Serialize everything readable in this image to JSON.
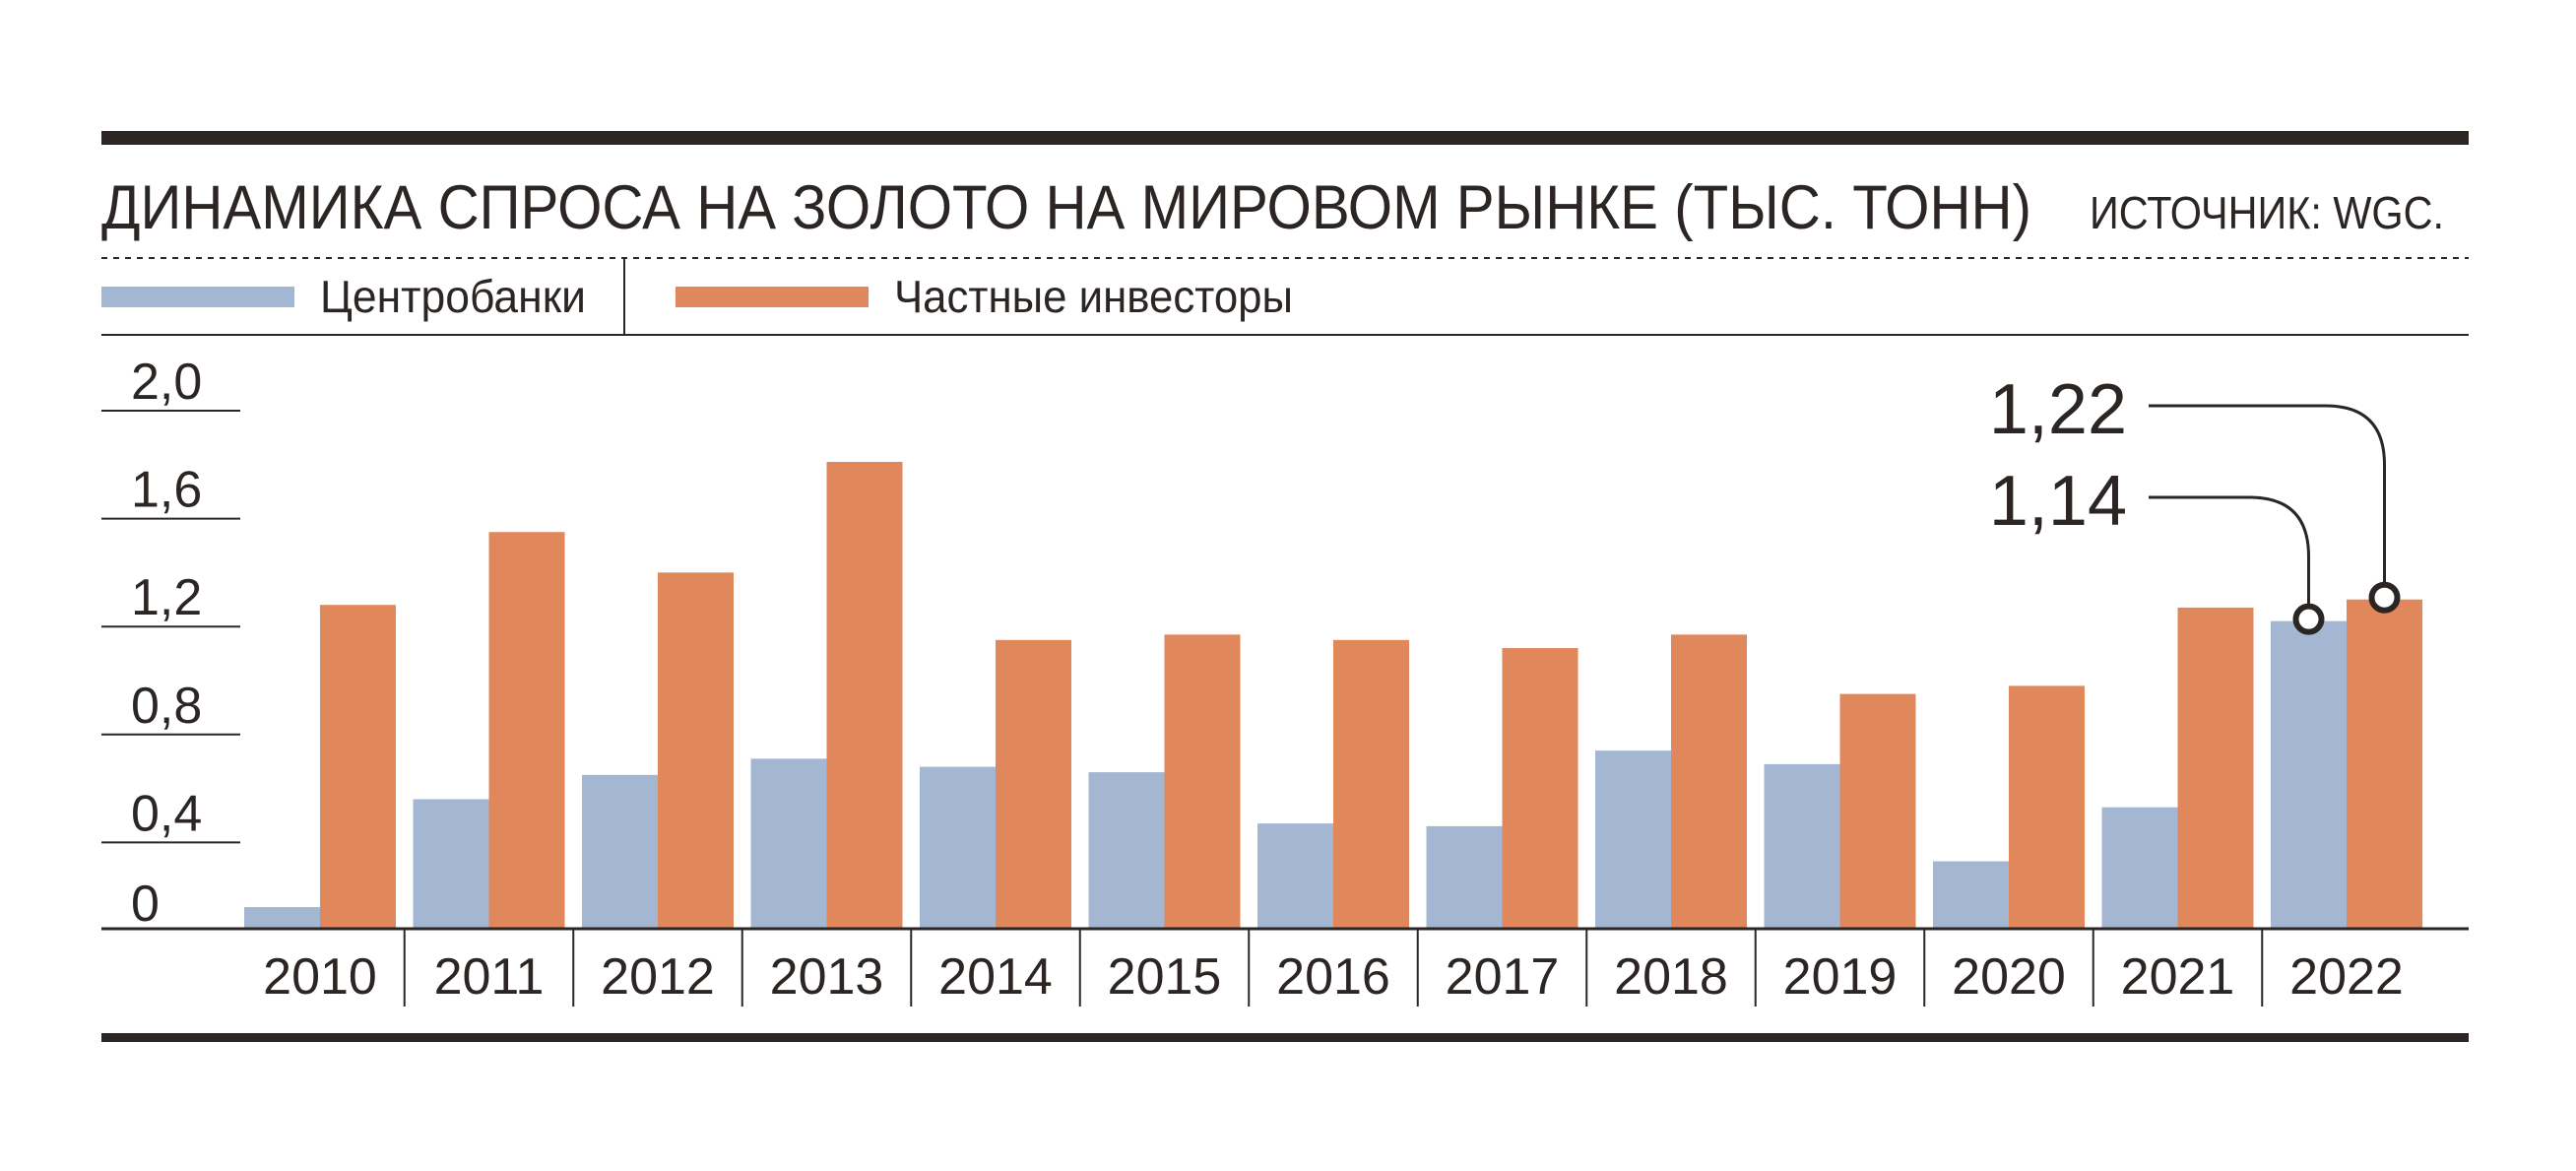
{
  "header": {
    "title": "ДИНАМИКА СПРОСА НА ЗОЛОТО НА МИРОВОМ РЫНКЕ (ТЫС. ТОНН)",
    "source": "ИСТОЧНИК: WGC."
  },
  "legend": {
    "items": [
      {
        "label": "Центробанки",
        "color": "#a3b7d3"
      },
      {
        "label": "Частные инвесторы",
        "color": "#e0875c"
      }
    ]
  },
  "callouts": [
    {
      "label": "1,22",
      "series": "Частные инвесторы",
      "category": "2022"
    },
    {
      "label": "1,14",
      "series": "Центробанки",
      "category": "2022"
    }
  ],
  "chart_data": {
    "type": "bar",
    "title": "ДИНАМИКА СПРОСА НА ЗОЛОТО НА МИРОВОМ РЫНКЕ (ТЫС. ТОНН)",
    "xlabel": "",
    "ylabel": "",
    "ylim": [
      0,
      2.0
    ],
    "yticks": [
      "0",
      "0,4",
      "0,8",
      "1,2",
      "1,6",
      "2,0"
    ],
    "ytick_values": [
      0,
      0.4,
      0.8,
      1.2,
      1.6,
      2.0
    ],
    "grid": false,
    "legend_position": "top-left",
    "categories": [
      "2010",
      "2011",
      "2012",
      "2013",
      "2014",
      "2015",
      "2016",
      "2017",
      "2018",
      "2019",
      "2020",
      "2021",
      "2022"
    ],
    "series": [
      {
        "name": "Центробанки",
        "color": "#a3b7d3",
        "values": [
          0.08,
          0.48,
          0.57,
          0.63,
          0.6,
          0.58,
          0.39,
          0.38,
          0.66,
          0.61,
          0.25,
          0.45,
          1.14
        ]
      },
      {
        "name": "Частные инвесторы",
        "color": "#e0875c",
        "values": [
          1.2,
          1.47,
          1.32,
          1.73,
          1.07,
          1.09,
          1.07,
          1.04,
          1.09,
          0.87,
          0.9,
          1.19,
          1.22
        ]
      }
    ]
  }
}
